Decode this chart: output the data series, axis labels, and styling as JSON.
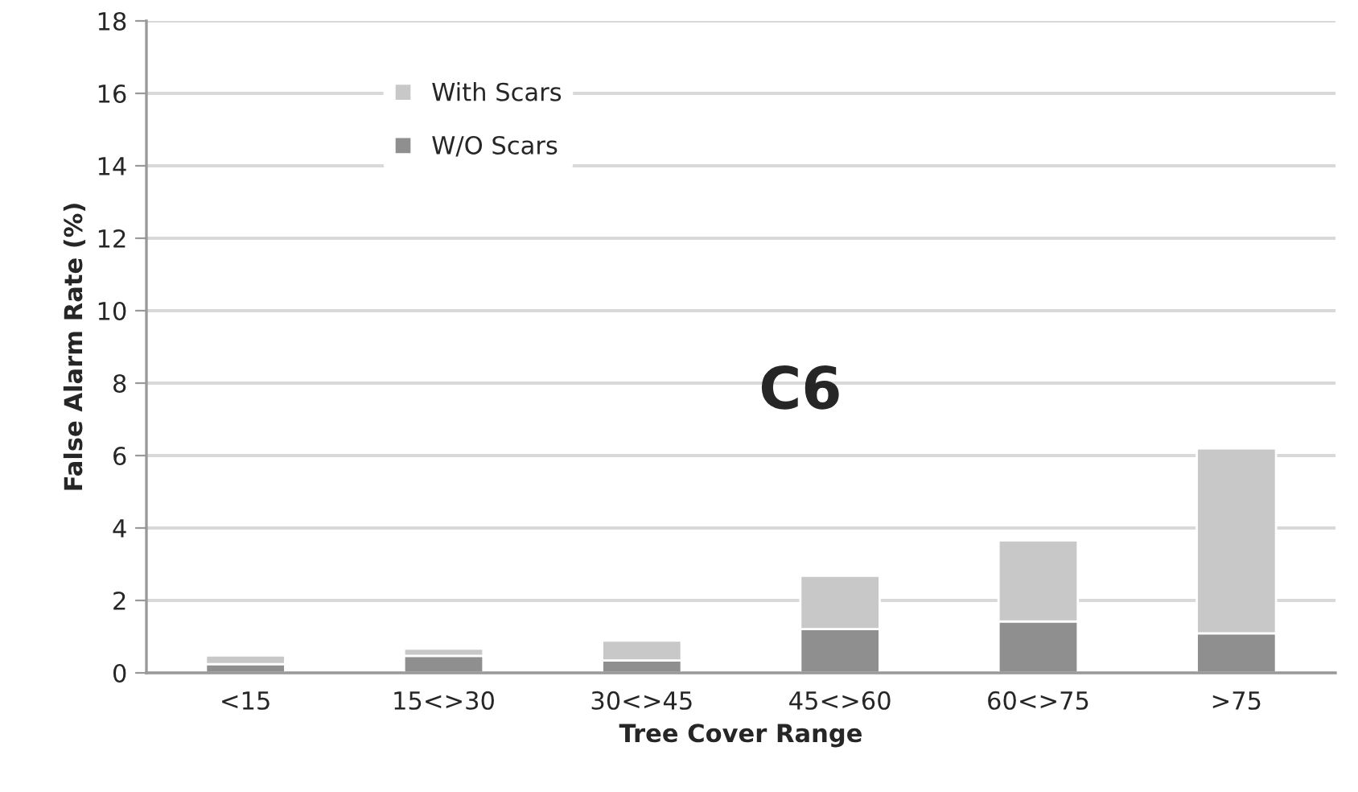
{
  "chart_data": {
    "type": "bar",
    "stacked": true,
    "xlabel": "Tree Cover Range",
    "ylabel": "False Alarm Rate (%)",
    "annotations": [
      "C6"
    ],
    "categories": [
      "<15",
      "15<>30",
      "30<>45",
      "45<>60",
      "60<>75",
      ">75"
    ],
    "series": [
      {
        "name": "W/O Scars",
        "color": "#8f8f8f",
        "values": [
          0.24,
          0.47,
          0.34,
          1.21,
          1.42,
          1.09
        ]
      },
      {
        "name": "With Scars",
        "color": "#c8c8c8",
        "values": [
          0.24,
          0.2,
          0.55,
          1.47,
          2.24,
          5.11
        ]
      }
    ],
    "ylim": [
      0,
      18
    ],
    "yticks": [
      0,
      2,
      4,
      6,
      8,
      10,
      12,
      14,
      16,
      18
    ],
    "grid": "y",
    "legend": "top left"
  }
}
